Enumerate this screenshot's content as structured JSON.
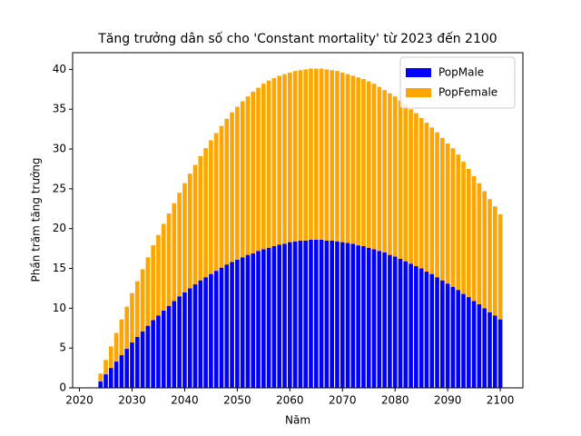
{
  "chart_data": {
    "type": "bar",
    "stacked": true,
    "title": "Tăng trưởng dân số cho 'Constant mortality' từ 2023 đến 2100",
    "xlabel": "Năm",
    "ylabel": "Phần trăm tăng trưởng",
    "x": [
      2023,
      2024,
      2025,
      2026,
      2027,
      2028,
      2029,
      2030,
      2031,
      2032,
      2033,
      2034,
      2035,
      2036,
      2037,
      2038,
      2039,
      2040,
      2041,
      2042,
      2043,
      2044,
      2045,
      2046,
      2047,
      2048,
      2049,
      2050,
      2051,
      2052,
      2053,
      2054,
      2055,
      2056,
      2057,
      2058,
      2059,
      2060,
      2061,
      2062,
      2063,
      2064,
      2065,
      2066,
      2067,
      2068,
      2069,
      2070,
      2071,
      2072,
      2073,
      2074,
      2075,
      2076,
      2077,
      2078,
      2079,
      2080,
      2081,
      2082,
      2083,
      2084,
      2085,
      2086,
      2087,
      2088,
      2089,
      2090,
      2091,
      2092,
      2093,
      2094,
      2095,
      2096,
      2097,
      2098,
      2099,
      2100
    ],
    "series": [
      {
        "name": "PopMale",
        "color": "#0000ff",
        "values": [
          0,
          0.8,
          1.7,
          2.5,
          3.3,
          4.1,
          4.9,
          5.7,
          6.4,
          7.1,
          7.8,
          8.5,
          9.1,
          9.7,
          10.3,
          10.9,
          11.5,
          12.0,
          12.5,
          13.0,
          13.5,
          13.9,
          14.3,
          14.7,
          15.1,
          15.5,
          15.8,
          16.1,
          16.4,
          16.7,
          16.9,
          17.2,
          17.4,
          17.6,
          17.8,
          18.0,
          18.1,
          18.3,
          18.4,
          18.5,
          18.5,
          18.6,
          18.6,
          18.6,
          18.5,
          18.5,
          18.4,
          18.3,
          18.2,
          18.1,
          17.9,
          17.8,
          17.6,
          17.4,
          17.2,
          17.0,
          16.7,
          16.5,
          16.2,
          15.9,
          15.6,
          15.3,
          15.0,
          14.6,
          14.3,
          13.9,
          13.5,
          13.1,
          12.7,
          12.3,
          11.8,
          11.4,
          10.9,
          10.5,
          10.0,
          9.5,
          9.1,
          8.6
        ]
      },
      {
        "name": "PopFemale",
        "color": "#ffa500",
        "values": [
          0,
          1.0,
          1.8,
          2.7,
          3.6,
          4.5,
          5.3,
          6.2,
          7.0,
          7.8,
          8.6,
          9.4,
          10.1,
          10.9,
          11.6,
          12.3,
          13.0,
          13.7,
          14.4,
          15.0,
          15.6,
          16.2,
          16.8,
          17.3,
          17.8,
          18.3,
          18.8,
          19.2,
          19.6,
          19.9,
          20.3,
          20.5,
          20.8,
          21.0,
          21.1,
          21.2,
          21.3,
          21.3,
          21.4,
          21.4,
          21.5,
          21.5,
          21.5,
          21.5,
          21.5,
          21.4,
          21.4,
          21.3,
          21.2,
          21.1,
          21.1,
          21.0,
          20.9,
          20.8,
          20.6,
          20.4,
          20.3,
          20.1,
          19.9,
          19.7,
          19.4,
          19.2,
          18.9,
          18.7,
          18.4,
          18.2,
          17.9,
          17.6,
          17.4,
          17.0,
          16.6,
          16.1,
          15.7,
          15.2,
          14.7,
          14.2,
          13.7,
          13.2
        ]
      }
    ],
    "xlim": [
      2018.7,
      2104.3
    ],
    "xticks": [
      2020,
      2030,
      2040,
      2050,
      2060,
      2070,
      2080,
      2090,
      2100
    ],
    "ylim": [
      0,
      42.1
    ],
    "yticks": [
      0,
      5,
      10,
      15,
      20,
      25,
      30,
      35,
      40
    ],
    "legend": "upper right"
  }
}
